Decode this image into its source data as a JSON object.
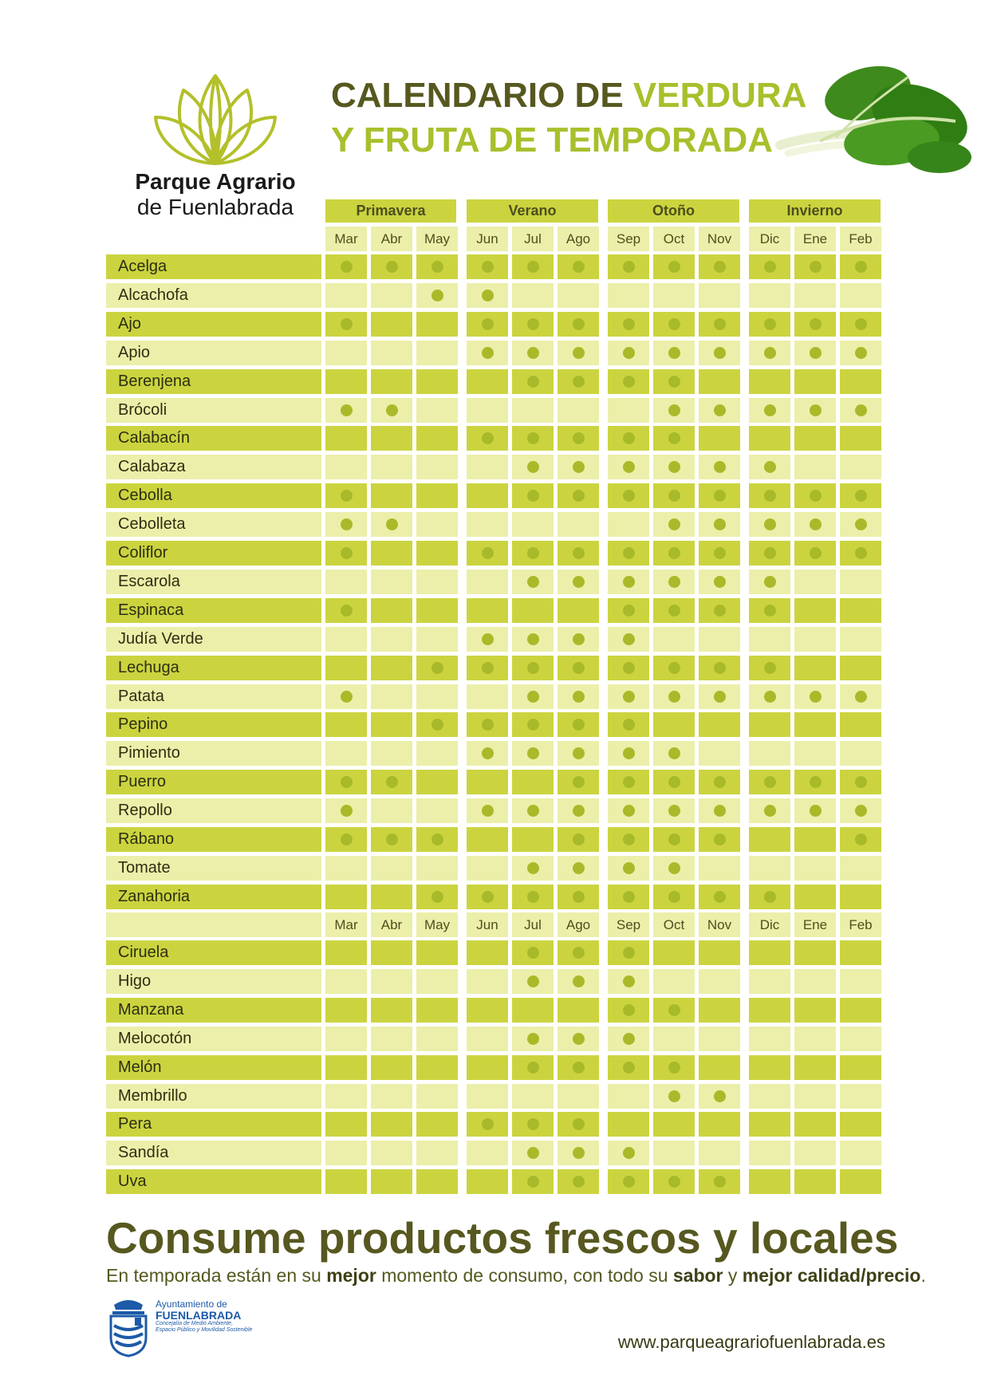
{
  "logo": {
    "line1": "Parque Agrario",
    "line2": "de Fuenlabrada"
  },
  "title": {
    "part1": "CALENDARIO DE ",
    "part2": "VERDURA",
    "part3": "Y FRUTA DE TEMPORADA"
  },
  "seasons": [
    "Primavera",
    "Verano",
    "Otoño",
    "Invierno"
  ],
  "months": [
    "Mar",
    "Abr",
    "May",
    "Jun",
    "Jul",
    "Ago",
    "Sep",
    "Oct",
    "Nov",
    "Dic",
    "Ene",
    "Feb"
  ],
  "vegetables": [
    {
      "name": "Acelga",
      "months": [
        1,
        1,
        1,
        1,
        1,
        1,
        1,
        1,
        1,
        1,
        1,
        1
      ]
    },
    {
      "name": "Alcachofa",
      "months": [
        0,
        0,
        1,
        1,
        0,
        0,
        0,
        0,
        0,
        0,
        0,
        0
      ]
    },
    {
      "name": "Ajo",
      "months": [
        1,
        0,
        0,
        1,
        1,
        1,
        1,
        1,
        1,
        1,
        1,
        1
      ]
    },
    {
      "name": "Apio",
      "months": [
        0,
        0,
        0,
        1,
        1,
        1,
        1,
        1,
        1,
        1,
        1,
        1
      ]
    },
    {
      "name": "Berenjena",
      "months": [
        0,
        0,
        0,
        0,
        1,
        1,
        1,
        1,
        0,
        0,
        0,
        0
      ]
    },
    {
      "name": "Brócoli",
      "months": [
        1,
        1,
        0,
        0,
        0,
        0,
        0,
        1,
        1,
        1,
        1,
        1
      ]
    },
    {
      "name": "Calabacín",
      "months": [
        0,
        0,
        0,
        1,
        1,
        1,
        1,
        1,
        0,
        0,
        0,
        0
      ]
    },
    {
      "name": "Calabaza",
      "months": [
        0,
        0,
        0,
        0,
        1,
        1,
        1,
        1,
        1,
        1,
        0,
        0
      ]
    },
    {
      "name": "Cebolla",
      "months": [
        1,
        0,
        0,
        0,
        1,
        1,
        1,
        1,
        1,
        1,
        1,
        1
      ]
    },
    {
      "name": "Cebolleta",
      "months": [
        1,
        1,
        0,
        0,
        0,
        0,
        0,
        1,
        1,
        1,
        1,
        1
      ]
    },
    {
      "name": "Coliflor",
      "months": [
        1,
        0,
        0,
        1,
        1,
        1,
        1,
        1,
        1,
        1,
        1,
        1
      ]
    },
    {
      "name": "Escarola",
      "months": [
        0,
        0,
        0,
        0,
        1,
        1,
        1,
        1,
        1,
        1,
        0,
        0
      ]
    },
    {
      "name": "Espinaca",
      "months": [
        1,
        0,
        0,
        0,
        0,
        0,
        1,
        1,
        1,
        1,
        0,
        0
      ]
    },
    {
      "name": "Judía Verde",
      "months": [
        0,
        0,
        0,
        1,
        1,
        1,
        1,
        0,
        0,
        0,
        0,
        0
      ]
    },
    {
      "name": "Lechuga",
      "months": [
        0,
        0,
        1,
        1,
        1,
        1,
        1,
        1,
        1,
        1,
        0,
        0
      ]
    },
    {
      "name": "Patata",
      "months": [
        1,
        0,
        0,
        0,
        1,
        1,
        1,
        1,
        1,
        1,
        1,
        1
      ]
    },
    {
      "name": "Pepino",
      "months": [
        0,
        0,
        1,
        1,
        1,
        1,
        1,
        0,
        0,
        0,
        0,
        0
      ]
    },
    {
      "name": "Pimiento",
      "months": [
        0,
        0,
        0,
        1,
        1,
        1,
        1,
        1,
        0,
        0,
        0,
        0
      ]
    },
    {
      "name": "Puerro",
      "months": [
        1,
        1,
        0,
        0,
        0,
        1,
        1,
        1,
        1,
        1,
        1,
        1
      ]
    },
    {
      "name": "Repollo",
      "months": [
        1,
        0,
        0,
        1,
        1,
        1,
        1,
        1,
        1,
        1,
        1,
        1
      ]
    },
    {
      "name": "Rábano",
      "months": [
        1,
        1,
        1,
        0,
        0,
        1,
        1,
        1,
        1,
        0,
        0,
        1
      ]
    },
    {
      "name": "Tomate",
      "months": [
        0,
        0,
        0,
        0,
        1,
        1,
        1,
        1,
        0,
        0,
        0,
        0
      ]
    },
    {
      "name": "Zanahoria",
      "months": [
        0,
        0,
        1,
        1,
        1,
        1,
        1,
        1,
        1,
        1,
        0,
        0
      ]
    }
  ],
  "fruits": [
    {
      "name": "Ciruela",
      "months": [
        0,
        0,
        0,
        0,
        1,
        1,
        1,
        0,
        0,
        0,
        0,
        0
      ]
    },
    {
      "name": "Higo",
      "months": [
        0,
        0,
        0,
        0,
        1,
        1,
        1,
        0,
        0,
        0,
        0,
        0
      ]
    },
    {
      "name": "Manzana",
      "months": [
        0,
        0,
        0,
        0,
        0,
        0,
        1,
        1,
        0,
        0,
        0,
        0
      ]
    },
    {
      "name": "Melocotón",
      "months": [
        0,
        0,
        0,
        0,
        1,
        1,
        1,
        0,
        0,
        0,
        0,
        0
      ]
    },
    {
      "name": "Melón",
      "months": [
        0,
        0,
        0,
        0,
        1,
        1,
        1,
        1,
        0,
        0,
        0,
        0
      ]
    },
    {
      "name": "Membrillo",
      "months": [
        0,
        0,
        0,
        0,
        0,
        0,
        0,
        1,
        1,
        0,
        0,
        0
      ]
    },
    {
      "name": "Pera",
      "months": [
        0,
        0,
        0,
        1,
        1,
        1,
        0,
        0,
        0,
        0,
        0,
        0
      ]
    },
    {
      "name": "Sandía",
      "months": [
        0,
        0,
        0,
        0,
        1,
        1,
        1,
        0,
        0,
        0,
        0,
        0
      ]
    },
    {
      "name": "Uva",
      "months": [
        0,
        0,
        0,
        0,
        1,
        1,
        1,
        1,
        1,
        0,
        0,
        0
      ]
    }
  ],
  "slogan": "Consume productos frescos y locales",
  "subtitle": {
    "t1": "En temporada están en su ",
    "b1": "mejor",
    "t2": " momento de consumo, con todo su ",
    "b2": "sabor",
    "t3": " y ",
    "b3": "mejor calidad/precio",
    "t4": "."
  },
  "ayuntamiento": {
    "line1": "Ayuntamiento de",
    "line2": "FUENLABRADA",
    "line3": "Concejalía de Medio Ambiente,",
    "line4": "Espacio Público y Movilidad Sostenible"
  },
  "website": "www.parqueagrariofuenlabrada.es",
  "colors": {
    "dark_green": "#56581f",
    "accent_green": "#a9bf2c",
    "dark_cell": "#cbd43f",
    "light_cell": "#ecefa9",
    "dot": "#a8ba29"
  }
}
